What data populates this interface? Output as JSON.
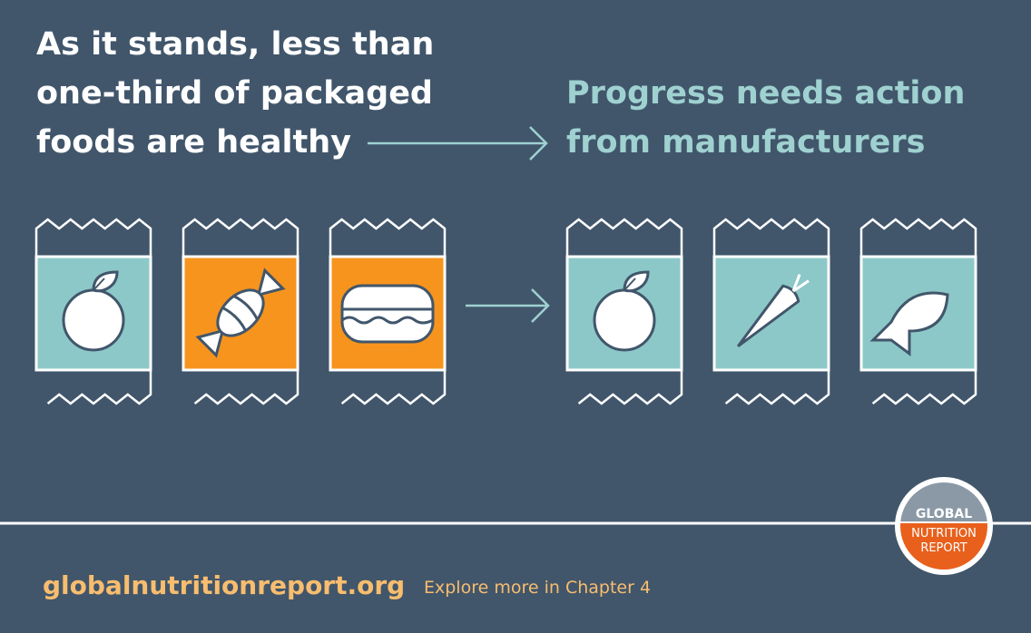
{
  "headline": {
    "lines": [
      "As it stands, less than",
      "one-third of packaged",
      "foods are healthy"
    ]
  },
  "goal": {
    "lines": [
      "Progress needs action",
      "from manufacturers"
    ]
  },
  "footer": {
    "website": "globalnutritionreport.org",
    "link": "Explore more in Chapter 4"
  },
  "logo": {
    "lines": [
      "GLOBAL",
      "NUTRITION",
      "REPORT"
    ]
  }
}
